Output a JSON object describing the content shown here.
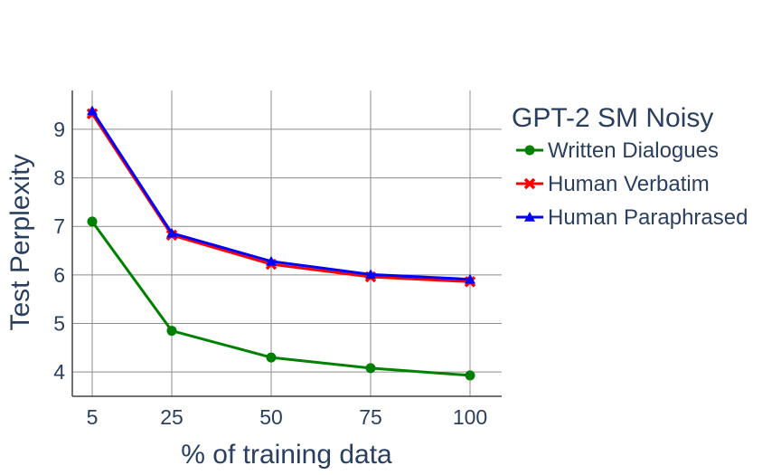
{
  "chart_data": {
    "type": "line",
    "title": "",
    "xlabel": "% of training data",
    "ylabel": "Test Perplexity",
    "categories": [
      "5",
      "25",
      "50",
      "75",
      "100"
    ],
    "x": [
      5,
      25,
      50,
      75,
      100
    ],
    "ylim": [
      3.5,
      9.8
    ],
    "yticks": [
      4,
      5,
      6,
      7,
      8,
      9
    ],
    "grid": true,
    "legend": {
      "title": "GPT-2 SM Noisy",
      "placement": "right"
    },
    "series": [
      {
        "name": "Written Dialogues",
        "color": "#008000",
        "marker": "circle",
        "values": [
          7.1,
          4.85,
          4.3,
          4.08,
          3.93
        ]
      },
      {
        "name": "Human Verbatim",
        "color": "#ff0000",
        "marker": "x",
        "values": [
          9.32,
          6.82,
          6.22,
          5.96,
          5.86
        ]
      },
      {
        "name": "Human Paraphrased",
        "color": "#0000ff",
        "marker": "triangle",
        "values": [
          9.38,
          6.86,
          6.28,
          6.01,
          5.91
        ]
      }
    ]
  }
}
